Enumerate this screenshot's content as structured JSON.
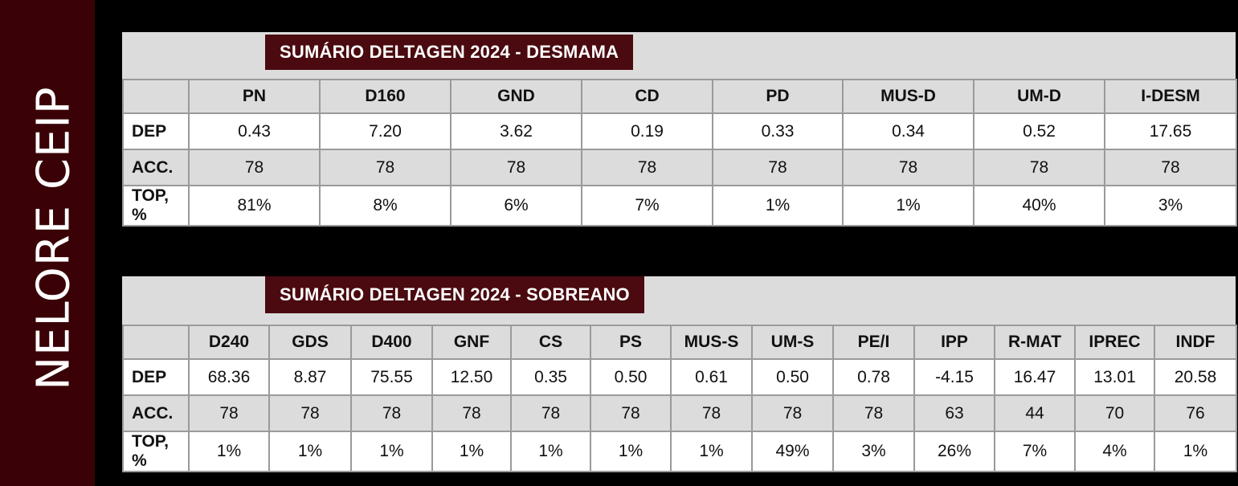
{
  "side_title": "NELORE CEIP",
  "desmama": {
    "title": "SUMÁRIO DELTAGEN 2024 - DESMAMA",
    "columns": [
      "PN",
      "D160",
      "GND",
      "CD",
      "PD",
      "MUS-D",
      "UM-D",
      "I-DESM"
    ],
    "rows": [
      {
        "label": "DEP",
        "values": [
          "0.43",
          "7.20",
          "3.62",
          "0.19",
          "0.33",
          "0.34",
          "0.52",
          "17.65"
        ]
      },
      {
        "label": "ACC.",
        "values": [
          "78",
          "78",
          "78",
          "78",
          "78",
          "78",
          "78",
          "78"
        ]
      },
      {
        "label": "TOP, %",
        "values": [
          "81%",
          "8%",
          "6%",
          "7%",
          "1%",
          "1%",
          "40%",
          "3%"
        ]
      }
    ]
  },
  "sobreano": {
    "title": "SUMÁRIO DELTAGEN 2024 - SOBREANO",
    "columns": [
      "D240",
      "GDS",
      "D400",
      "GNF",
      "CS",
      "PS",
      "MUS-S",
      "UM-S",
      "PE/I",
      "IPP",
      "R-MAT",
      "IPREC",
      "INDF"
    ],
    "rows": [
      {
        "label": "DEP",
        "values": [
          "68.36",
          "8.87",
          "75.55",
          "12.50",
          "0.35",
          "0.50",
          "0.61",
          "0.50",
          "0.78",
          "-4.15",
          "16.47",
          "13.01",
          "20.58"
        ]
      },
      {
        "label": "ACC.",
        "values": [
          "78",
          "78",
          "78",
          "78",
          "78",
          "78",
          "78",
          "78",
          "78",
          "63",
          "44",
          "70",
          "76"
        ]
      },
      {
        "label": "TOP, %",
        "values": [
          "1%",
          "1%",
          "1%",
          "1%",
          "1%",
          "1%",
          "1%",
          "49%",
          "3%",
          "26%",
          "7%",
          "4%",
          "1%"
        ]
      }
    ]
  }
}
